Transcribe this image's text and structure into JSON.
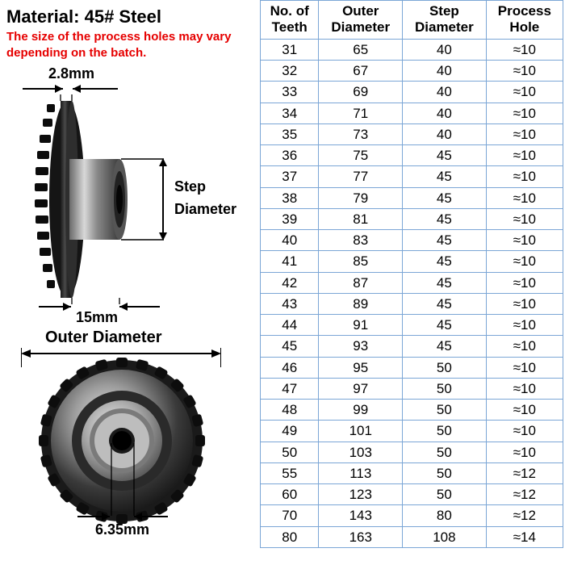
{
  "header": {
    "material_label": "Material:",
    "material_value": "45# Steel",
    "warning_text": "The size of the process holes may vary depending on the batch."
  },
  "diagram": {
    "top_width_label": "2.8mm",
    "step_diameter_label_line1": "Step",
    "step_diameter_label_line2": "Diameter",
    "hub_width_label": "15mm",
    "outer_diameter_label": "Outer Diameter",
    "bore_label": "6.35mm",
    "label_font_size": 18,
    "label_font_weight": "bold",
    "arrow_color": "#000000"
  },
  "table": {
    "columns": [
      {
        "line1": "No. of",
        "line2": "Teeth"
      },
      {
        "line1": "Outer",
        "line2": "Diameter"
      },
      {
        "line1": "Step",
        "line2": "Diameter"
      },
      {
        "line1": "Process",
        "line2": "Hole"
      }
    ],
    "rows": [
      [
        "31",
        "65",
        "40",
        "≈10"
      ],
      [
        "32",
        "67",
        "40",
        "≈10"
      ],
      [
        "33",
        "69",
        "40",
        "≈10"
      ],
      [
        "34",
        "71",
        "40",
        "≈10"
      ],
      [
        "35",
        "73",
        "40",
        "≈10"
      ],
      [
        "36",
        "75",
        "45",
        "≈10"
      ],
      [
        "37",
        "77",
        "45",
        "≈10"
      ],
      [
        "38",
        "79",
        "45",
        "≈10"
      ],
      [
        "39",
        "81",
        "45",
        "≈10"
      ],
      [
        "40",
        "83",
        "45",
        "≈10"
      ],
      [
        "41",
        "85",
        "45",
        "≈10"
      ],
      [
        "42",
        "87",
        "45",
        "≈10"
      ],
      [
        "43",
        "89",
        "45",
        "≈10"
      ],
      [
        "44",
        "91",
        "45",
        "≈10"
      ],
      [
        "45",
        "93",
        "45",
        "≈10"
      ],
      [
        "46",
        "95",
        "50",
        "≈10"
      ],
      [
        "47",
        "97",
        "50",
        "≈10"
      ],
      [
        "48",
        "99",
        "50",
        "≈10"
      ],
      [
        "49",
        "101",
        "50",
        "≈10"
      ],
      [
        "50",
        "103",
        "50",
        "≈10"
      ],
      [
        "55",
        "113",
        "50",
        "≈12"
      ],
      [
        "60",
        "123",
        "50",
        "≈12"
      ],
      [
        "70",
        "143",
        "80",
        "≈12"
      ],
      [
        "80",
        "163",
        "108",
        "≈14"
      ]
    ],
    "border_color": "#7ba6d6",
    "header_font_size": 17,
    "cell_font_size": 17,
    "text_color": "#000000",
    "background_color": "#ffffff"
  },
  "colors": {
    "warning_red": "#e60000",
    "black": "#000000",
    "steel_dark": "#2a2a2a",
    "steel_mid": "#6b6b6b",
    "steel_light": "#b8b8b8",
    "steel_shine": "#e8e8e8"
  }
}
